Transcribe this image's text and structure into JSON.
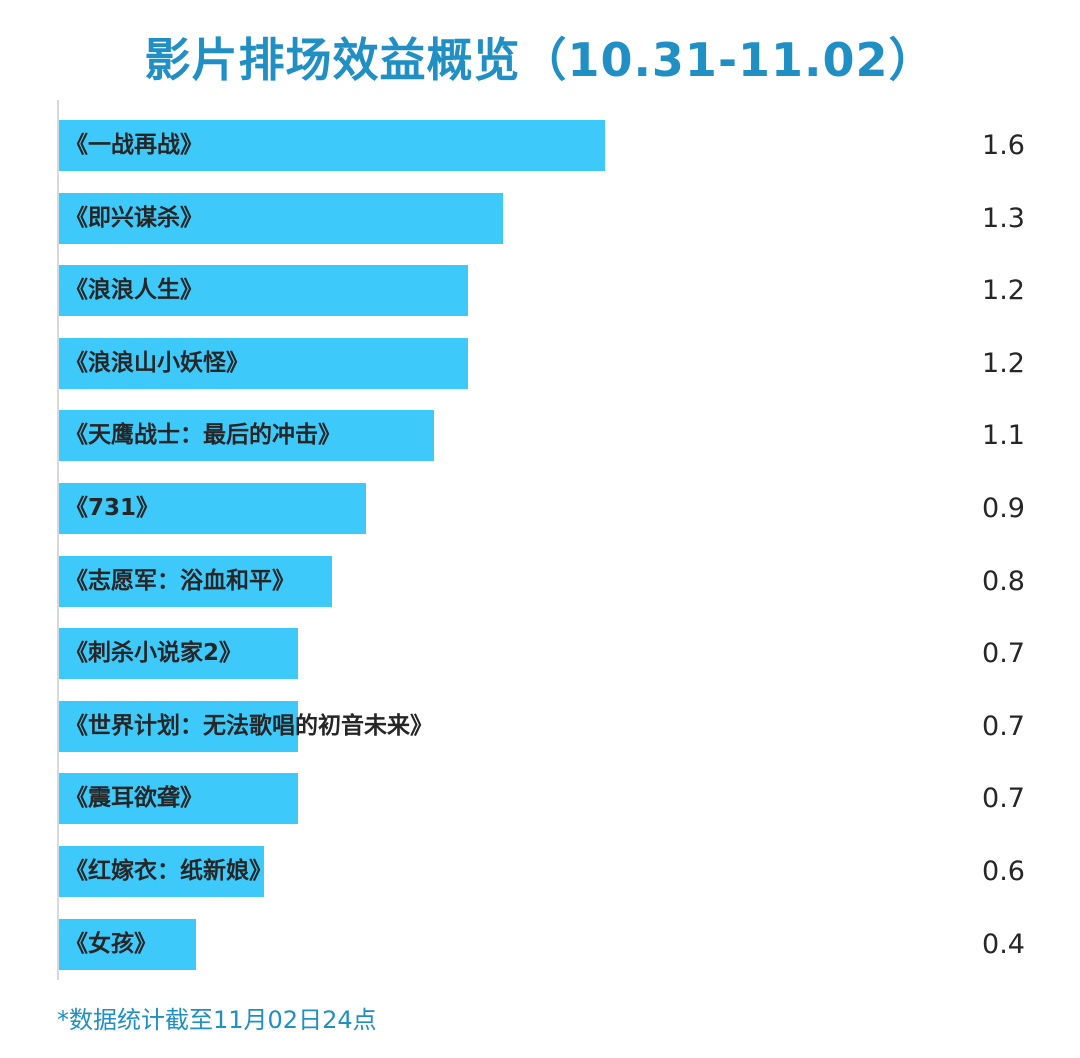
{
  "chart_data": {
    "type": "bar",
    "orientation": "horizontal",
    "title": "影片排场效益概览（10.31-11.02）",
    "categories": [
      "《一战再战》",
      "《即兴谋杀》",
      "《浪浪人生》",
      "《浪浪山小妖怪》",
      "《天鹰战士：最后的冲击》",
      "《731》",
      "《志愿军：浴血和平》",
      "《刺杀小说家2》",
      "《世界计划：无法歌唱的初音未来》",
      "《震耳欲聋》",
      "《红嫁衣：纸新娘》",
      "《女孩》"
    ],
    "values": [
      1.6,
      1.3,
      1.2,
      1.2,
      1.1,
      0.9,
      0.8,
      0.7,
      0.7,
      0.7,
      0.6,
      0.4
    ],
    "value_labels": [
      "1.6",
      "1.3",
      "1.2",
      "1.2",
      "1.1",
      "0.9",
      "0.8",
      "0.7",
      "0.7",
      "0.7",
      "0.6",
      "0.4"
    ],
    "xlim": [
      0,
      1.6
    ],
    "grid": false,
    "bar_color": "#3ec9fb",
    "title_color": "#1f8fc4"
  },
  "footnote": "*数据统计截至11月02日24点"
}
